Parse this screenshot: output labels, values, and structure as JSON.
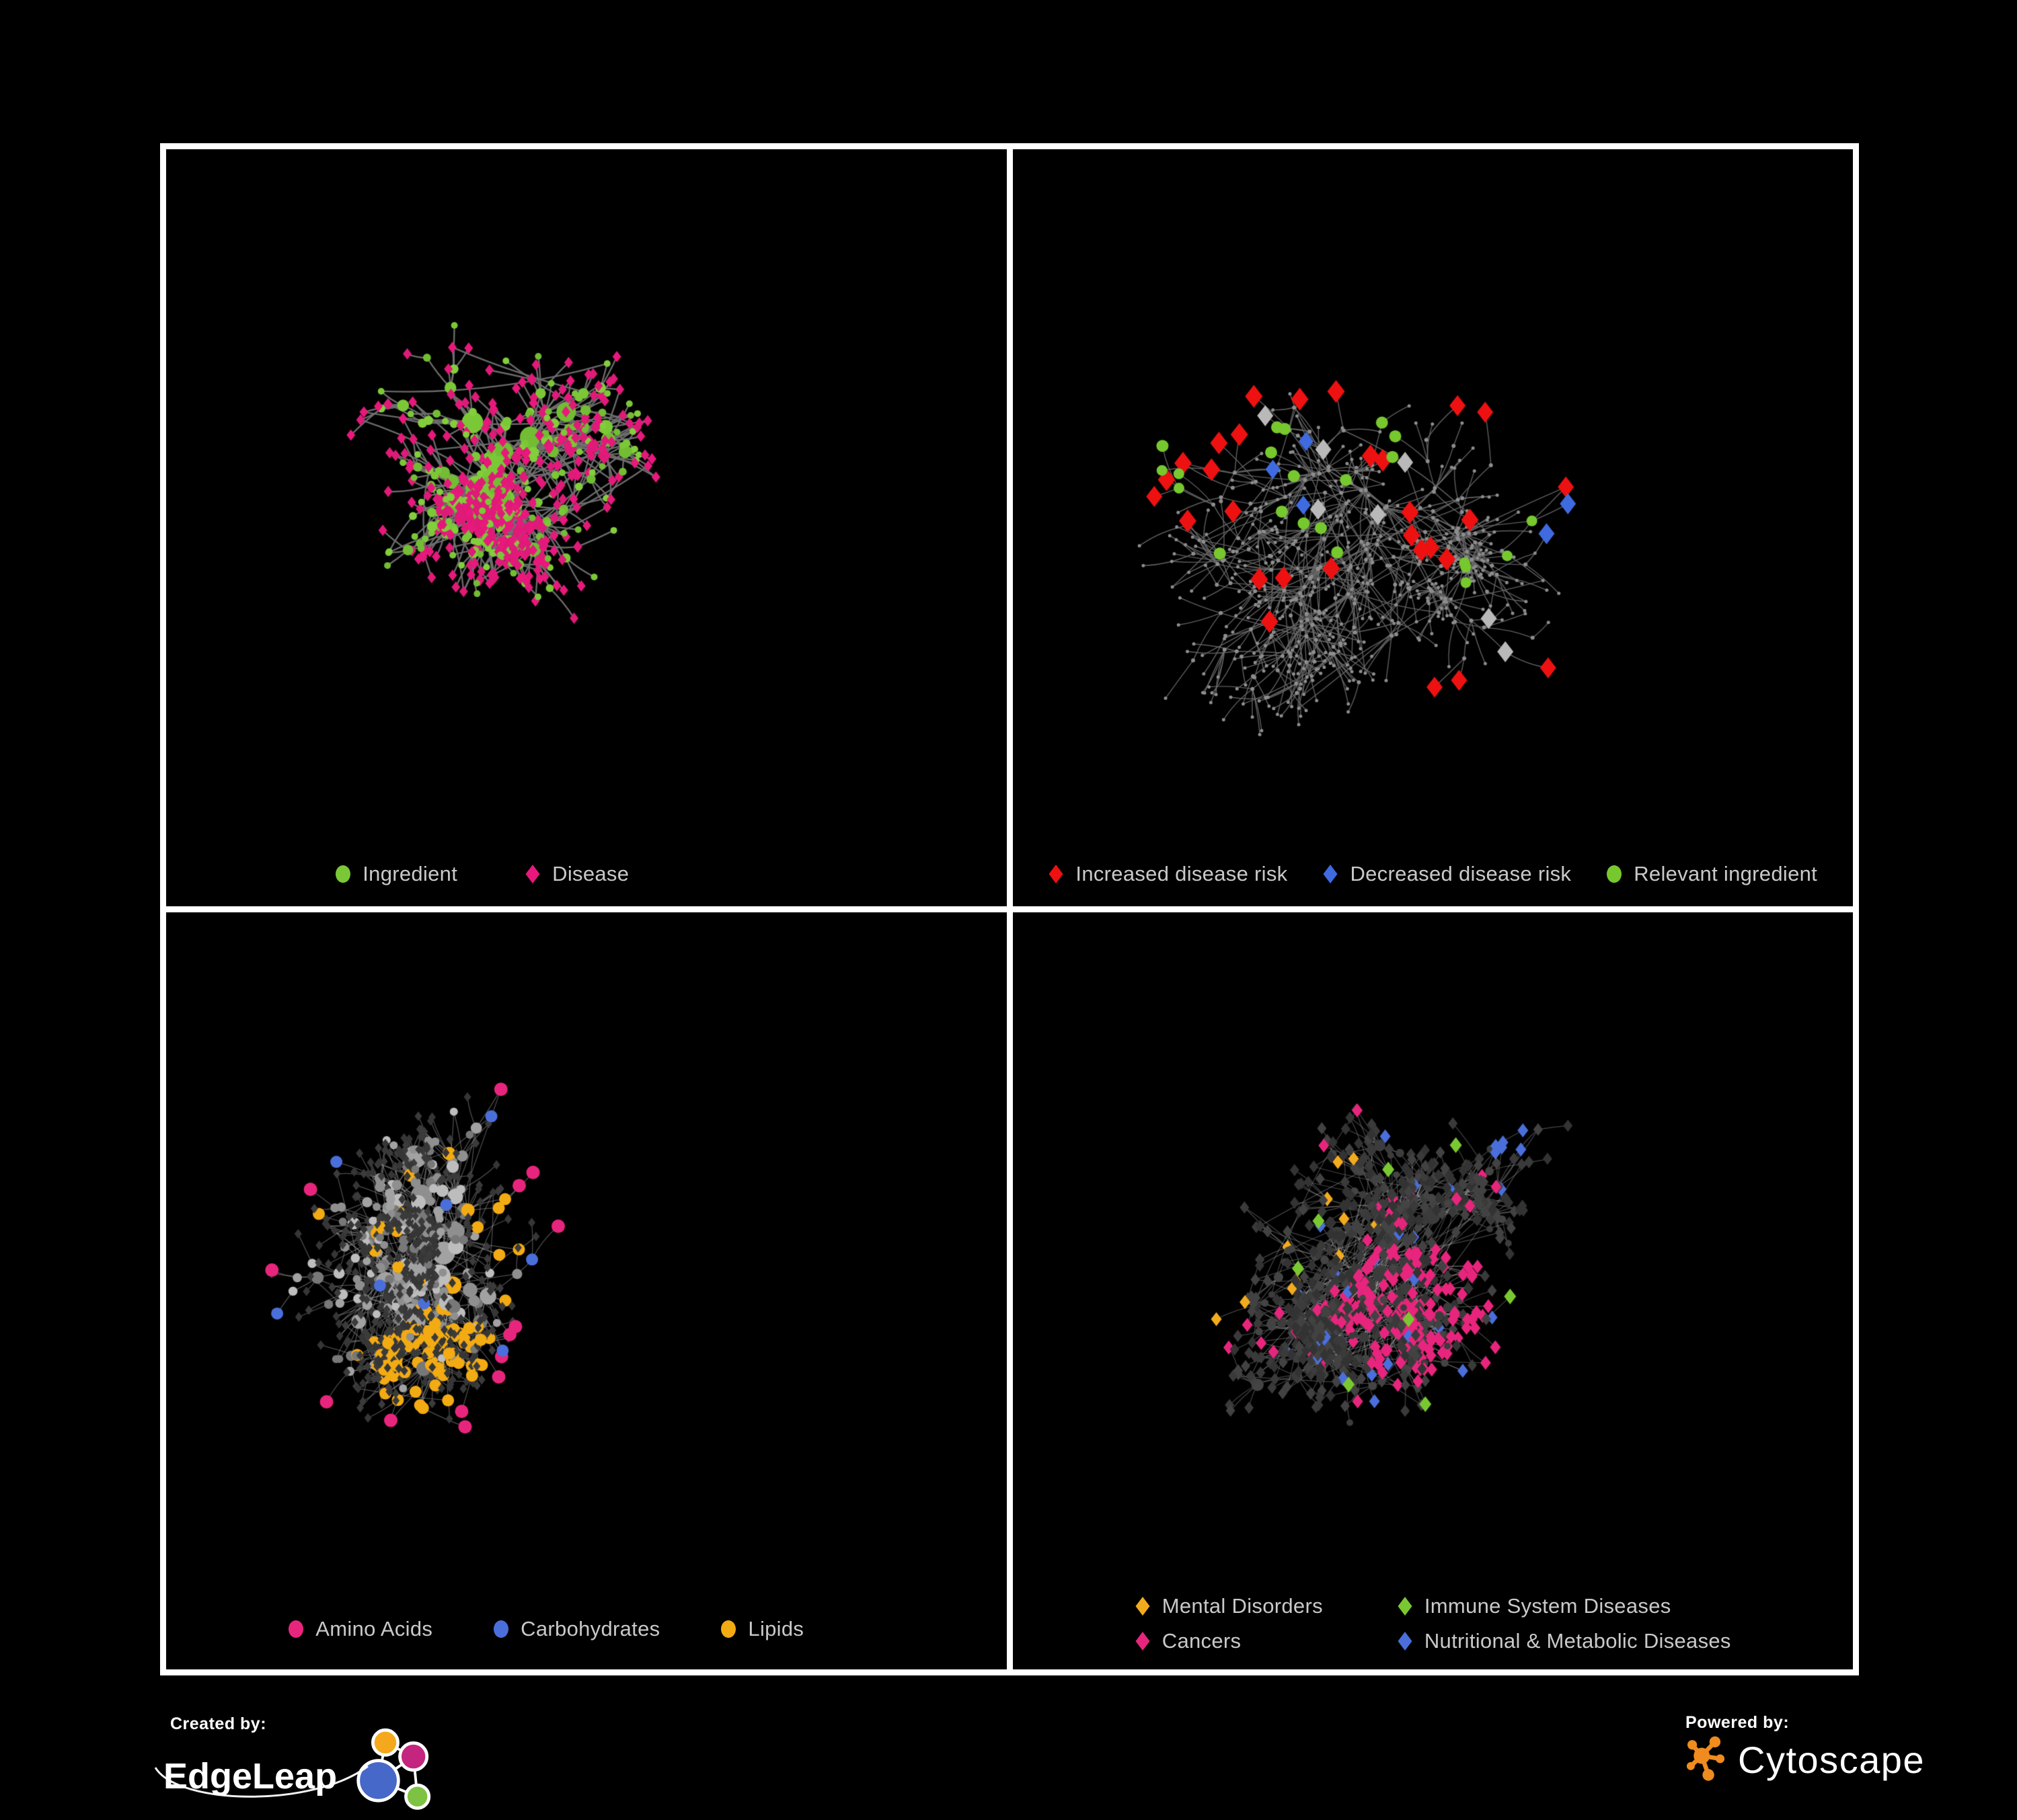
{
  "page": {
    "background": "#000000",
    "frame_color": "#ffffff",
    "legend_text_color": "#c9c9c9"
  },
  "footer": {
    "created": {
      "label": "Created by:",
      "brand": "EdgeLeap"
    },
    "powered": {
      "label": "Powered by:",
      "brand": "Cytoscape"
    },
    "edgeleap_palette": {
      "blue": "#4668c9",
      "orange": "#f5a81c",
      "magenta": "#c4257e",
      "green": "#7dc242"
    },
    "cytoscape_color": "#ef8b1f"
  },
  "chart_data": [
    {
      "id": "ingredient-disease-network",
      "type": "network",
      "position": "top-left",
      "legend": [
        {
          "label": "Ingredient",
          "shape": "circle",
          "color": "#7bc837"
        },
        {
          "label": "Disease",
          "shape": "diamond",
          "color": "#e8187c"
        }
      ],
      "style": {
        "edge_color": "#707070",
        "edge_width": 2.4,
        "edge_alpha": 0.95
      },
      "gen": {
        "seed": 7,
        "nodes": 560,
        "extra": 60,
        "len": 44,
        "pref": 1.5,
        "depthPen": 0.1,
        "root": [
          0.4,
          0.4
        ],
        "fans": [
          5,
          10,
          14
        ],
        "leaf_diamond": 0.78,
        "int_circle": 0.62,
        "circle_colors": [
          "#7bc837",
          "#82ce3b",
          "#72bd33"
        ],
        "diamond_colors": [
          "#e8187c",
          "#df1a78"
        ],
        "cr": [
          5,
          0.95,
          16
        ],
        "dr": [
          6.5,
          0.45,
          10
        ],
        "rules": [],
        "highlights": []
      }
    },
    {
      "id": "disease-risk-network",
      "type": "network",
      "position": "top-right",
      "legend": [
        {
          "label": "Increased disease risk",
          "shape": "diamond",
          "color": "#ee1111"
        },
        {
          "label": "Decreased disease risk",
          "shape": "diamond",
          "color": "#3f6be0"
        },
        {
          "label": "Relevant ingredient",
          "shape": "circle",
          "color": "#76c82e"
        }
      ],
      "style": {
        "edge_color": "#696969",
        "edge_width": 1.4,
        "edge_alpha": 0.9
      },
      "gen": {
        "seed": 13,
        "nodes": 620,
        "extra": 45,
        "len": 55,
        "pref": 1.2,
        "depthPen": 0.04,
        "root": [
          0.42,
          0.45
        ],
        "fans": [
          7,
          8,
          12
        ],
        "dot": true,
        "dot_color": "#8d8d8d",
        "rules": [],
        "highlights": [
          {
            "shape": "diamond",
            "color": "#ee1111",
            "size": 13,
            "count": 22,
            "region": [
              0.34,
              0.47,
              0.2,
              0.16
            ]
          },
          {
            "shape": "diamond",
            "color": "#ee1111",
            "size": 12,
            "count": 3,
            "region": [
              0.6,
              0.755,
              0.05,
              0.045
            ]
          },
          {
            "shape": "diamond",
            "color": "#ee1111",
            "size": 12,
            "count": 2,
            "region": [
              0.55,
              0.3,
              0.05,
              0.04
            ]
          },
          {
            "shape": "diamond",
            "color": "#ee1111",
            "size": 12,
            "count": 1,
            "region": [
              0.71,
              0.37,
              0.02,
              0.02
            ]
          },
          {
            "shape": "diamond",
            "color": "#ee1111",
            "size": 12,
            "count": 1,
            "region": [
              0.105,
              0.46,
              0.03,
              0.03
            ]
          },
          {
            "shape": "diamond",
            "color": "#b9b9b9",
            "size": 12,
            "count": 4,
            "region": [
              0.4,
              0.5,
              0.15,
              0.12
            ]
          },
          {
            "shape": "diamond",
            "color": "#b9b9b9",
            "size": 12,
            "count": 2,
            "region": [
              0.57,
              0.625,
              0.05,
              0.04
            ]
          },
          {
            "shape": "diamond",
            "color": "#b9b9b9",
            "size": 12,
            "count": 1,
            "region": [
              0.24,
              0.345,
              0.03,
              0.03
            ]
          },
          {
            "shape": "diamond",
            "color": "#3f6be0",
            "size": 12,
            "points": [
              [
                0.808,
                0.342
              ],
              [
                0.836,
                0.352
              ]
            ]
          },
          {
            "shape": "diamond",
            "color": "#3f6be0",
            "size": 11,
            "count": 3,
            "region": [
              0.36,
              0.44,
              0.05,
              0.05
            ]
          },
          {
            "shape": "circle",
            "color": "#76c82e",
            "size": 9,
            "count": 14,
            "region": [
              0.34,
              0.45,
              0.17,
              0.13
            ]
          },
          {
            "shape": "circle",
            "color": "#76c82e",
            "size": 8,
            "count": 4,
            "region": [
              0.565,
              0.575,
              0.04,
              0.04
            ]
          },
          {
            "shape": "circle",
            "color": "#76c82e",
            "size": 8,
            "count": 3,
            "region": [
              0.15,
              0.34,
              0.06,
              0.08
            ]
          },
          {
            "shape": "circle",
            "color": "#76c82e",
            "size": 8,
            "points": [
              [
                0.782,
                0.352
              ]
            ]
          }
        ]
      }
    },
    {
      "id": "nutrient-class-network",
      "type": "network",
      "position": "bottom-left",
      "legend": [
        {
          "label": "Amino Acids",
          "shape": "circle",
          "color": "#e8257d"
        },
        {
          "label": "Carbohydrates",
          "shape": "circle",
          "color": "#4a6fdb"
        },
        {
          "label": "Lipids",
          "shape": "circle",
          "color": "#f3ab13"
        }
      ],
      "style": {
        "edge_color": "#aaaaaa",
        "edge_width": 1.3,
        "edge_alpha": 0.45
      },
      "gen": {
        "seed": 21,
        "nodes": 640,
        "extra": 90,
        "len": 46,
        "pref": 1.55,
        "depthPen": 0.09,
        "root": [
          0.33,
          0.45
        ],
        "fans": [
          7,
          14,
          22
        ],
        "leaf_diamond": 0.85,
        "int_circle": 0.97,
        "circle_colors": [
          "#a2a2a2",
          "#8f8f8f",
          "#bdbdbd",
          "#787878"
        ],
        "diamond_colors": [
          "#3b3b3b",
          "#363636"
        ],
        "cr": [
          6,
          0.8,
          17
        ],
        "dr": [
          5.5,
          0.3,
          8
        ],
        "rules": [
          {
            "apply": "circle",
            "color": "#f3ab13",
            "prob": 0.9,
            "size": 9,
            "regions": [
              [
                0.53,
                0.26,
                0.11,
                0.07
              ],
              [
                0.33,
                0.6,
                0.1,
                0.06
              ],
              [
                0.58,
                0.735,
                0.05,
                0.045
              ],
              [
                0.46,
                0.42,
                0.09,
                0.06
              ]
            ]
          },
          {
            "apply": "circle",
            "color": "#4a6fdb",
            "prob": 0.55,
            "size": 9,
            "regions": [
              [
                0.53,
                0.39,
                0.07,
                0.05
              ]
            ]
          },
          {
            "apply": "circle",
            "color": "#f3ab13",
            "prob": 0.06,
            "size": 9,
            "regions": [
              [
                0.55,
                0.45,
                0.42,
                0.4
              ]
            ]
          },
          {
            "apply": "circle",
            "color": "#4a6fdb",
            "prob": 0.022,
            "size": 9,
            "regions": [
              [
                0.5,
                0.5,
                0.5,
                0.5
              ]
            ]
          }
        ],
        "highlights": [
          {
            "shape": "circle",
            "color": "#e8257d",
            "size": 10,
            "points": [
              [
                0.665,
                0.715
              ],
              [
                0.69,
                0.74
              ],
              [
                0.655,
                0.1
              ],
              [
                0.07,
                0.305
              ],
              [
                0.065,
                0.44
              ],
              [
                0.29,
                0.7
              ],
              [
                0.41,
                0.845
              ],
              [
                0.74,
                0.64
              ],
              [
                0.78,
                0.72
              ],
              [
                0.97,
                0.44
              ],
              [
                0.52,
                0.78
              ],
              [
                0.055,
                0.845
              ],
              [
                0.615,
                0.35
              ],
              [
                0.96,
                0.175
              ]
            ]
          },
          {
            "shape": "circle",
            "color": "#4a6fdb",
            "size": 9,
            "points": [
              [
                0.13,
                0.255
              ],
              [
                0.035,
                0.545
              ],
              [
                0.7,
                0.825
              ],
              [
                0.76,
                0.175
              ],
              [
                0.92,
                0.6
              ]
            ]
          }
        ]
      }
    },
    {
      "id": "disease-class-network",
      "type": "network",
      "position": "bottom-right",
      "legend_layout": "two-col",
      "legend": [
        {
          "label": "Mental Disorders",
          "shape": "diamond",
          "color": "#f3ab1e"
        },
        {
          "label": "Immune System Diseases",
          "shape": "diamond",
          "color": "#79c832"
        },
        {
          "label": "Cancers",
          "shape": "diamond",
          "color": "#e8257d"
        },
        {
          "label": "Nutritional & Metabolic Diseases",
          "shape": "diamond",
          "color": "#4a6fdb"
        }
      ],
      "style": {
        "edge_color": "#b5b5b5",
        "edge_width": 1.2,
        "edge_alpha": 0.38
      },
      "gen": {
        "seed": 29,
        "nodes": 760,
        "extra": 130,
        "len": 44,
        "pref": 1.45,
        "depthPen": 0.08,
        "root": [
          0.45,
          0.45
        ],
        "fans": [
          8,
          12,
          20
        ],
        "leaf_diamond": 0.95,
        "int_circle": 0.45,
        "circle_colors": [
          "#3c3c3c",
          "#444444"
        ],
        "diamond_colors": [
          "#3a3a3a",
          "#333333",
          "#424242"
        ],
        "cr": [
          5,
          0.7,
          12
        ],
        "dr": [
          7,
          0.25,
          9.5
        ],
        "rules": [
          {
            "apply": "diamond",
            "color": "#f3ab1e",
            "prob": 0.85,
            "size": 8,
            "regions": [
              [
                0.17,
                0.5,
                0.11,
                0.1
              ]
            ]
          },
          {
            "apply": "diamond",
            "color": "#f3ab1e",
            "prob": 0.1,
            "size": 8,
            "regions": [
              [
                0.25,
                0.28,
                0.22,
                0.24
              ]
            ]
          },
          {
            "apply": "diamond",
            "color": "#e8257d",
            "prob": 0.55,
            "size": 8,
            "regions": [
              [
                0.51,
                0.53,
                0.12,
                0.1
              ]
            ]
          },
          {
            "apply": "diamond",
            "color": "#e8257d",
            "prob": 0.6,
            "size": 8,
            "regions": [
              [
                0.87,
                0.27,
                0.05,
                0.05
              ]
            ]
          },
          {
            "apply": "diamond",
            "color": "#4a6fdb",
            "prob": 0.5,
            "size": 8,
            "regions": [
              [
                0.73,
                0.44,
                0.09,
                0.11
              ],
              [
                0.44,
                0.08,
                0.14,
                0.06
              ],
              [
                0.82,
                0.62,
                0.07,
                0.07
              ],
              [
                0.62,
                0.3,
                0.06,
                0.05
              ],
              [
                0.62,
                0.1,
                0.08,
                0.06
              ],
              [
                0.3,
                0.82,
                0.05,
                0.04
              ]
            ]
          },
          {
            "apply": "diamond",
            "color": "#4a6fdb",
            "prob": 0.06,
            "size": 8,
            "regions": [
              [
                0.55,
                0.4,
                0.42,
                0.4
              ]
            ]
          },
          {
            "apply": "diamond",
            "color": "#e8257d",
            "prob": 0.05,
            "size": 8,
            "regions": [
              [
                0.5,
                0.5,
                0.5,
                0.45
              ]
            ]
          }
        ],
        "highlights": [
          {
            "shape": "diamond",
            "color": "#79c832",
            "size": 9,
            "points": [
              [
                0.44,
                0.33
              ],
              [
                0.335,
                0.465
              ],
              [
                0.4,
                0.62
              ],
              [
                0.47,
                0.54
              ],
              [
                0.935,
                0.52
              ],
              [
                0.63,
                0.85
              ],
              [
                0.52,
                0.3
              ],
              [
                0.36,
                0.4
              ]
            ]
          }
        ]
      }
    }
  ]
}
